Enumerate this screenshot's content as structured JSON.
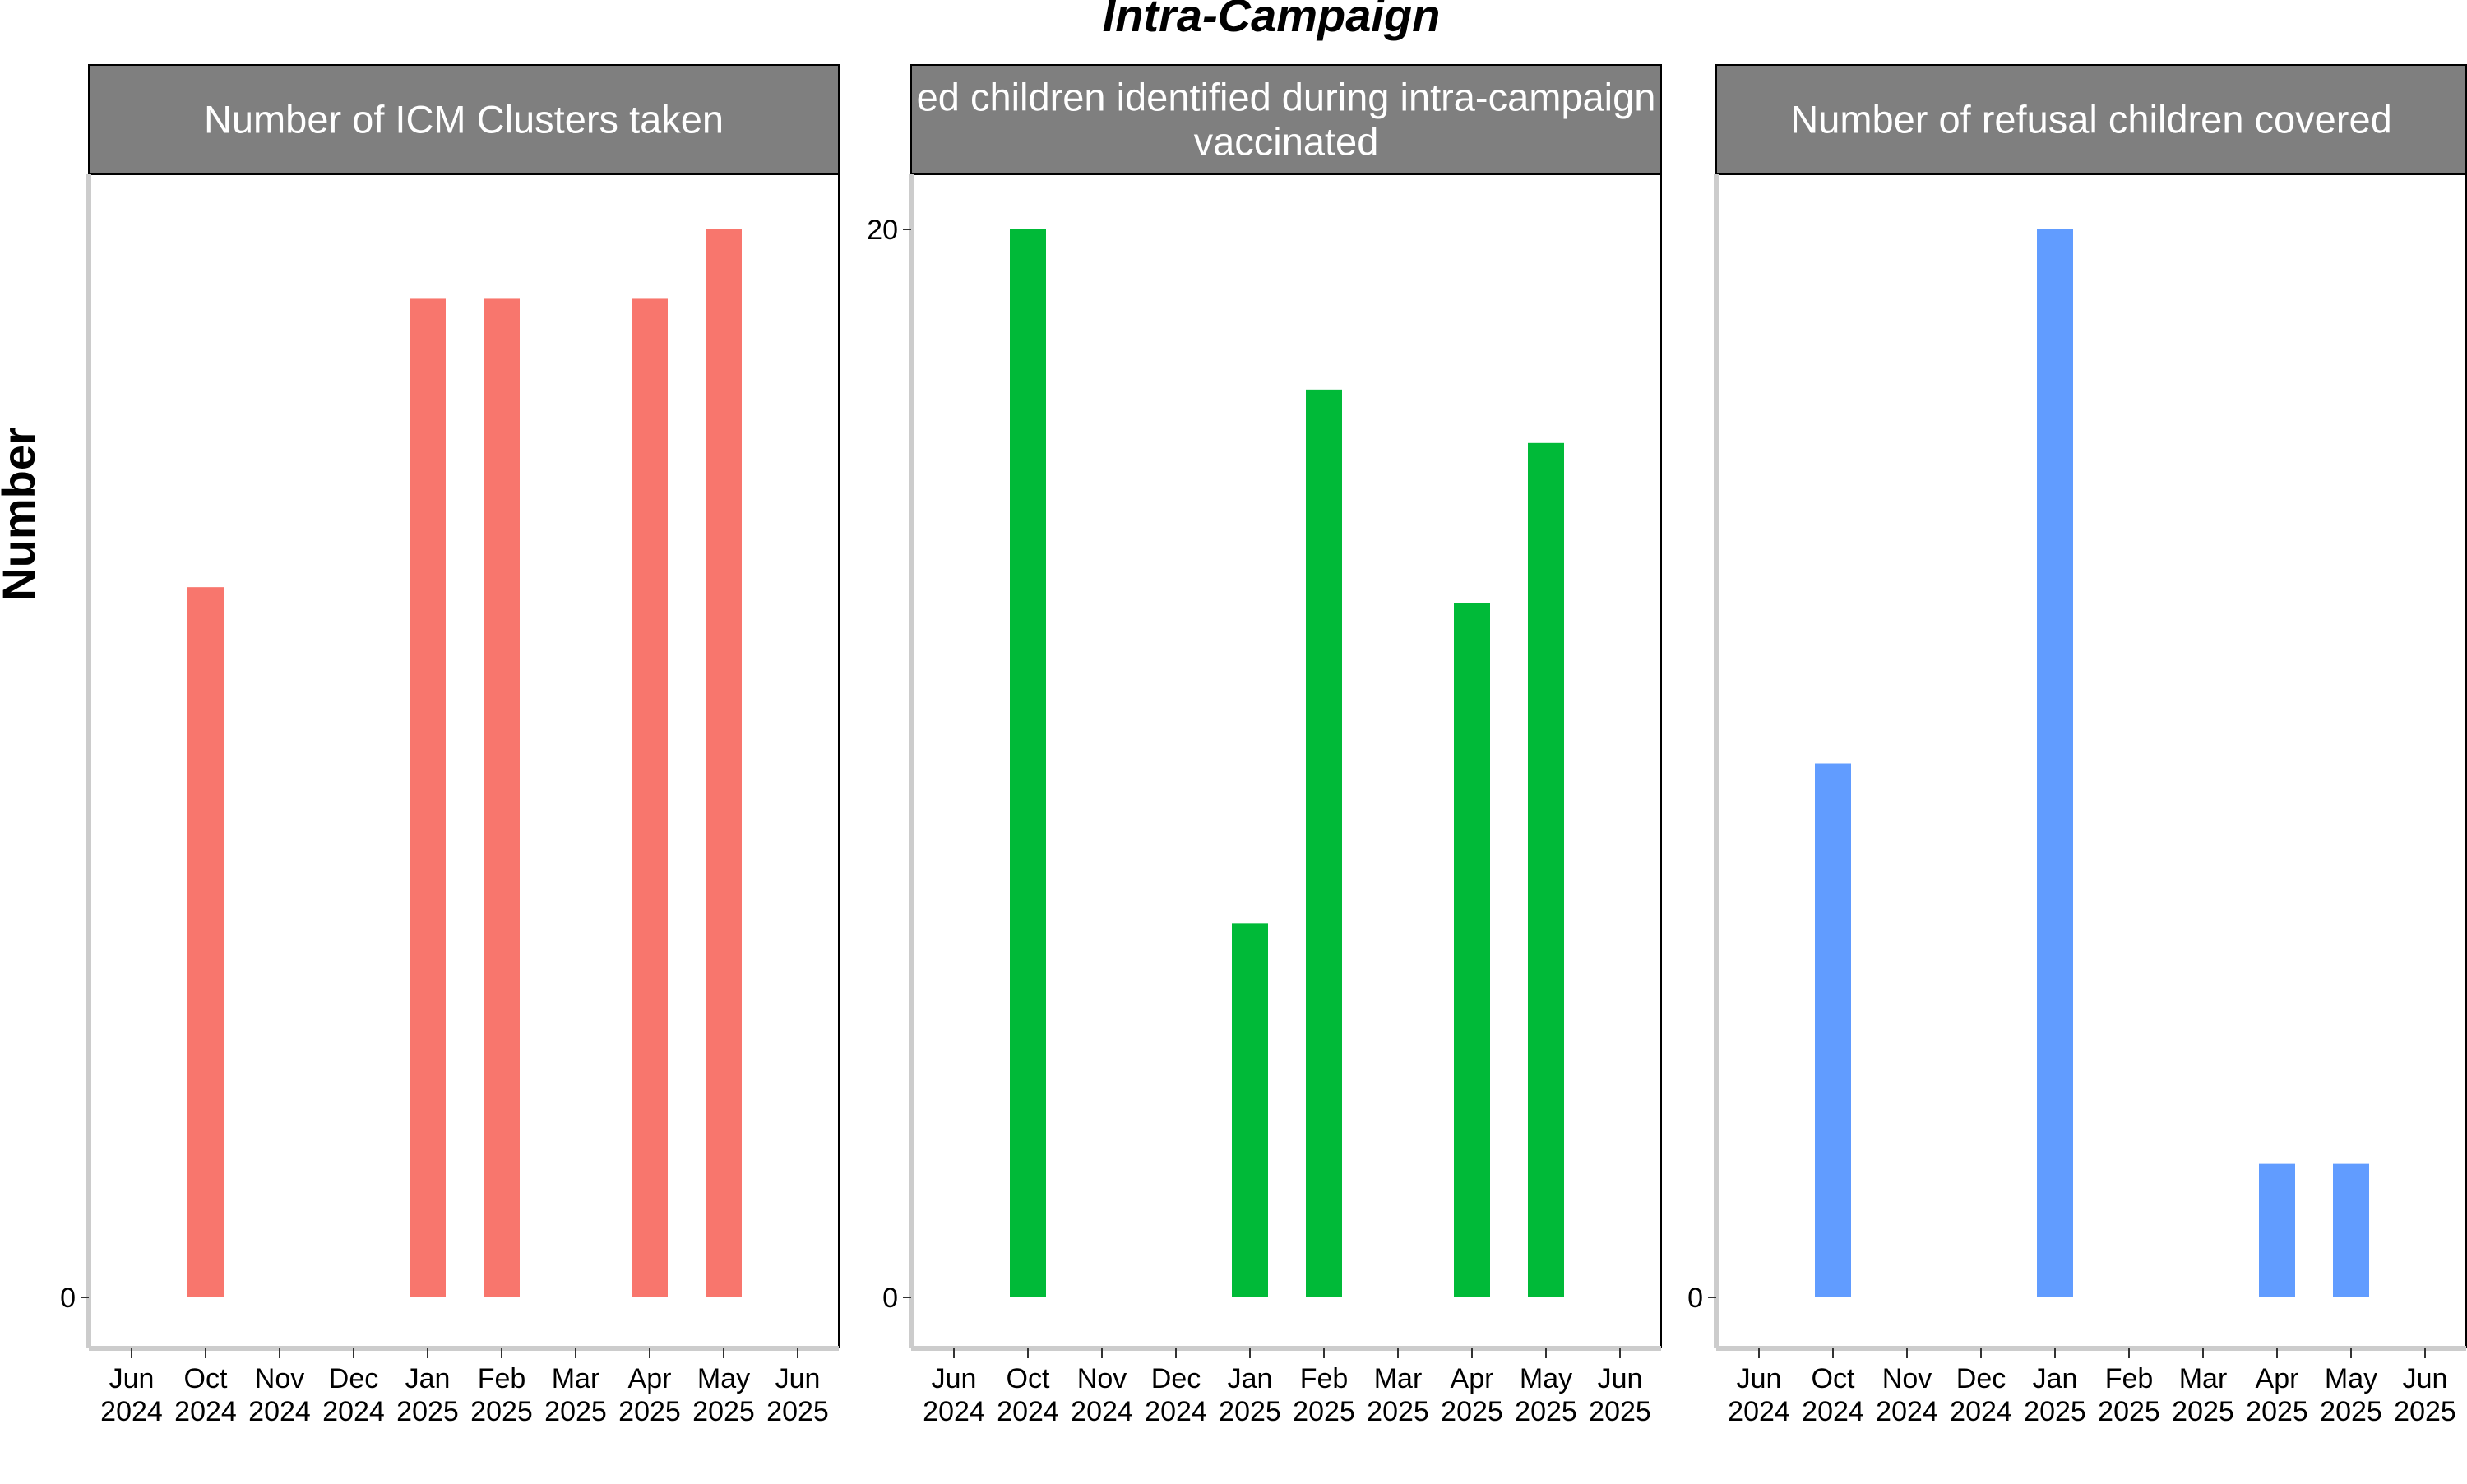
{
  "chart_data": {
    "type": "bar",
    "title": "Intra-Campaign",
    "ylabel": "Number",
    "categories": [
      "Jun\n2024",
      "Oct\n2024",
      "Nov\n2024",
      "Dec\n2024",
      "Jan\n2025",
      "Feb\n2025",
      "Mar\n2025",
      "Apr\n2025",
      "May\n2025",
      "Jun\n2025"
    ],
    "panels": [
      {
        "strip": [
          "Number of ICM Clusters taken"
        ],
        "color": "#F8766D",
        "ylim": [
          0,
          20
        ],
        "yticks": [
          {
            "value": 0,
            "label": "0"
          }
        ],
        "values": [
          null,
          13.3,
          null,
          null,
          18.7,
          18.7,
          null,
          18.7,
          20,
          null
        ]
      },
      {
        "strip": [
          "ed children identified during intra-campaign",
          "vaccinated"
        ],
        "color": "#00BA38",
        "ylim": [
          0,
          20
        ],
        "yticks": [
          {
            "value": 0,
            "label": "0"
          },
          {
            "value": 20,
            "label": "20"
          }
        ],
        "values": [
          null,
          20,
          null,
          null,
          7,
          17,
          null,
          13,
          16,
          null
        ]
      },
      {
        "strip": [
          "Number of refusal children covered"
        ],
        "color": "#619CFF",
        "ylim": [
          0,
          20
        ],
        "yticks": [
          {
            "value": 0,
            "label": "0"
          }
        ],
        "values": [
          null,
          10,
          null,
          null,
          20,
          null,
          null,
          2.5,
          2.5,
          null
        ]
      }
    ]
  }
}
